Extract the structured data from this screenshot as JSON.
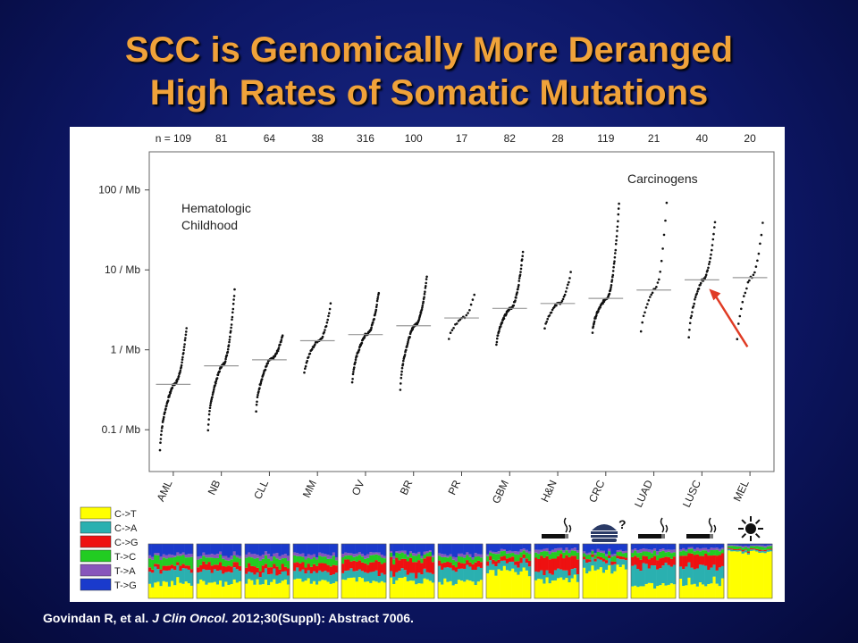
{
  "slide": {
    "title_line1": "SCC is Genomically More Deranged",
    "title_line2": "High Rates of Somatic Mutations",
    "citation_prefix": "Govindan R, et al. ",
    "citation_journal": "J Clin Oncol.",
    "citation_suffix": " 2012;30(Suppl): Abstract 7006."
  },
  "chart_data": {
    "type": "scatter",
    "title": "",
    "xlabel": "",
    "ylabel": "",
    "y_scale": "log",
    "ylim": [
      0.03,
      300
    ],
    "y_ticks": [
      {
        "value": 100,
        "label": "100 / Mb"
      },
      {
        "value": 10,
        "label": "10 / Mb"
      },
      {
        "value": 1,
        "label": "1 / Mb"
      },
      {
        "value": 0.1,
        "label": "0.1 / Mb"
      }
    ],
    "annotations": [
      {
        "text_lines": [
          "Hematologic",
          "Childhood"
        ]
      },
      {
        "text_lines": [
          "Carcinogens"
        ]
      }
    ],
    "highlight_arrow": {
      "target": "LUSC",
      "color": "#e03b24"
    },
    "categories": [
      "AML",
      "NB",
      "CLL",
      "MM",
      "OV",
      "BR",
      "PR",
      "GBM",
      "H&N",
      "CRC",
      "LUAD",
      "LUSC",
      "MEL"
    ],
    "n_prefix": "n = ",
    "n": [
      109,
      81,
      64,
      38,
      316,
      100,
      17,
      82,
      28,
      119,
      21,
      40,
      20
    ],
    "median": [
      0.37,
      0.63,
      0.75,
      1.3,
      1.55,
      2.0,
      2.5,
      3.3,
      3.8,
      4.4,
      5.6,
      7.5,
      8.0
    ],
    "min": [
      0.04,
      0.07,
      0.13,
      0.4,
      0.3,
      0.23,
      1.1,
      0.95,
      1.5,
      1.4,
      1.1,
      0.95,
      0.75
    ],
    "max": [
      2.0,
      6.0,
      1.6,
      4.0,
      5.5,
      8.5,
      5.5,
      18,
      10,
      75,
      95,
      45,
      48
    ]
  },
  "mutation_legend": [
    {
      "label": "C->T",
      "color": "#ffff00"
    },
    {
      "label": "C->A",
      "color": "#2ab0b0"
    },
    {
      "label": "C->G",
      "color": "#ee1111"
    },
    {
      "label": "T->C",
      "color": "#22cc22"
    },
    {
      "label": "T->A",
      "color": "#8855bb"
    },
    {
      "label": "T->G",
      "color": "#1a3acc"
    }
  ],
  "spectra": [
    {
      "category": "AML",
      "fractions": [
        0.28,
        0.25,
        0.07,
        0.15,
        0.05,
        0.2
      ]
    },
    {
      "category": "NB",
      "fractions": [
        0.3,
        0.2,
        0.12,
        0.12,
        0.06,
        0.2
      ]
    },
    {
      "category": "CLL",
      "fractions": [
        0.3,
        0.18,
        0.12,
        0.15,
        0.07,
        0.18
      ]
    },
    {
      "category": "MM",
      "fractions": [
        0.32,
        0.18,
        0.13,
        0.12,
        0.05,
        0.2
      ]
    },
    {
      "category": "OV",
      "fractions": [
        0.35,
        0.15,
        0.18,
        0.1,
        0.05,
        0.17
      ]
    },
    {
      "category": "BR",
      "fractions": [
        0.3,
        0.15,
        0.25,
        0.1,
        0.04,
        0.16
      ]
    },
    {
      "category": "PR",
      "fractions": [
        0.3,
        0.25,
        0.1,
        0.1,
        0.05,
        0.2
      ]
    },
    {
      "category": "GBM",
      "fractions": [
        0.5,
        0.15,
        0.08,
        0.1,
        0.04,
        0.13
      ]
    },
    {
      "category": "H&N",
      "fractions": [
        0.35,
        0.15,
        0.25,
        0.1,
        0.05,
        0.1
      ]
    },
    {
      "category": "CRC",
      "fractions": [
        0.55,
        0.15,
        0.05,
        0.08,
        0.04,
        0.13
      ]
    },
    {
      "category": "LUAD",
      "fractions": [
        0.25,
        0.35,
        0.15,
        0.1,
        0.05,
        0.1
      ]
    },
    {
      "category": "LUSC",
      "fractions": [
        0.3,
        0.3,
        0.2,
        0.08,
        0.04,
        0.08
      ]
    },
    {
      "category": "MEL",
      "fractions": [
        0.85,
        0.03,
        0.02,
        0.05,
        0.02,
        0.03
      ]
    }
  ],
  "exposure_icons": [
    {
      "category": "H&N",
      "icon": "cigarette-icon"
    },
    {
      "category": "CRC",
      "icon": "burger-question-icon"
    },
    {
      "category": "LUAD",
      "icon": "cigarette-icon"
    },
    {
      "category": "LUSC",
      "icon": "cigarette-icon"
    },
    {
      "category": "MEL",
      "icon": "sun-icon"
    }
  ]
}
